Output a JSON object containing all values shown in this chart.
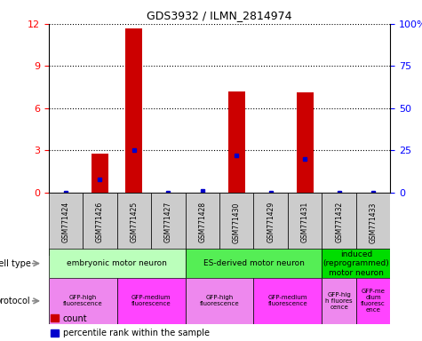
{
  "title": "GDS3932 / ILMN_2814974",
  "samples": [
    "GSM771424",
    "GSM771426",
    "GSM771425",
    "GSM771427",
    "GSM771428",
    "GSM771430",
    "GSM771429",
    "GSM771431",
    "GSM771432",
    "GSM771433"
  ],
  "counts": [
    0,
    2.8,
    11.7,
    0,
    0,
    7.2,
    0,
    7.1,
    0,
    0
  ],
  "percentile_ranks": [
    0,
    8,
    25,
    0,
    1.0,
    22,
    0,
    20,
    0,
    0
  ],
  "ylim_left": [
    0,
    12
  ],
  "ylim_right": [
    0,
    100
  ],
  "yticks_left": [
    0,
    3,
    6,
    9,
    12
  ],
  "yticks_right": [
    0,
    25,
    50,
    75,
    100
  ],
  "ytick_labels_right": [
    "0",
    "25",
    "50",
    "75",
    "100%"
  ],
  "bar_color": "#cc0000",
  "dot_color": "#0000cc",
  "bar_width": 0.5,
  "cell_type_groups": [
    {
      "label": "embryonic motor neuron",
      "start": 0,
      "end": 3,
      "color": "#bbffbb"
    },
    {
      "label": "ES-derived motor neuron",
      "start": 4,
      "end": 7,
      "color": "#55ee55"
    },
    {
      "label": "induced\n(reprogrammed)\nmotor neuron",
      "start": 8,
      "end": 9,
      "color": "#00dd00"
    }
  ],
  "protocol_groups": [
    {
      "label": "GFP-high\nfluorescence",
      "start": 0,
      "end": 1,
      "color": "#ee88ee"
    },
    {
      "label": "GFP-medium\nfluorescence",
      "start": 2,
      "end": 3,
      "color": "#ff44ff"
    },
    {
      "label": "GFP-high\nfluorescence",
      "start": 4,
      "end": 5,
      "color": "#ee88ee"
    },
    {
      "label": "GFP-medium\nfluorescence",
      "start": 6,
      "end": 7,
      "color": "#ff44ff"
    },
    {
      "label": "GFP-hig\nh fluores\ncence",
      "start": 8,
      "end": 8,
      "color": "#ee88ee"
    },
    {
      "label": "GFP-me\ndium\nfluoresc\nence",
      "start": 9,
      "end": 9,
      "color": "#ff44ff"
    }
  ],
  "legend_count_label": "count",
  "legend_percentile_label": "percentile rank within the sample",
  "cell_type_label": "cell type",
  "protocol_label": "protocol",
  "sample_bg_color": "#cccccc",
  "label_arrow_color": "#888888"
}
